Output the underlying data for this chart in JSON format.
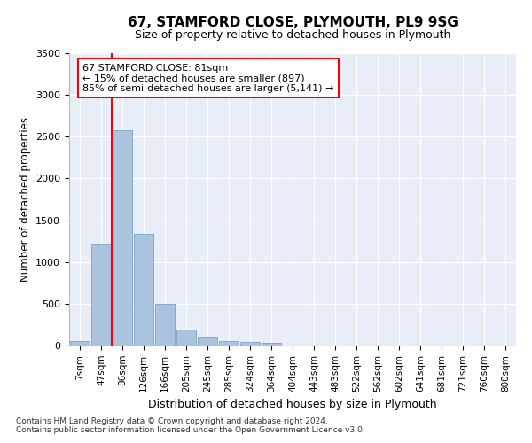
{
  "title": "67, STAMFORD CLOSE, PLYMOUTH, PL9 9SG",
  "subtitle": "Size of property relative to detached houses in Plymouth",
  "xlabel": "Distribution of detached houses by size in Plymouth",
  "ylabel": "Number of detached properties",
  "categories": [
    "7sqm",
    "47sqm",
    "86sqm",
    "126sqm",
    "166sqm",
    "205sqm",
    "245sqm",
    "285sqm",
    "324sqm",
    "364sqm",
    "404sqm",
    "443sqm",
    "483sqm",
    "522sqm",
    "562sqm",
    "602sqm",
    "641sqm",
    "681sqm",
    "721sqm",
    "760sqm",
    "800sqm"
  ],
  "values": [
    55,
    1220,
    2580,
    1340,
    500,
    195,
    105,
    55,
    45,
    35,
    0,
    0,
    0,
    0,
    0,
    0,
    0,
    0,
    0,
    0,
    0
  ],
  "bar_color": "#aac4e0",
  "bar_edge_color": "#6699bb",
  "vline_color": "red",
  "annotation_text": "67 STAMFORD CLOSE: 81sqm\n← 15% of detached houses are smaller (897)\n85% of semi-detached houses are larger (5,141) →",
  "annotation_box_color": "white",
  "annotation_box_edge": "red",
  "ylim": [
    0,
    3500
  ],
  "yticks": [
    0,
    500,
    1000,
    1500,
    2000,
    2500,
    3000,
    3500
  ],
  "bg_color": "#e8eef8",
  "grid_color": "white",
  "footnote1": "Contains HM Land Registry data © Crown copyright and database right 2024.",
  "footnote2": "Contains public sector information licensed under the Open Government Licence v3.0."
}
